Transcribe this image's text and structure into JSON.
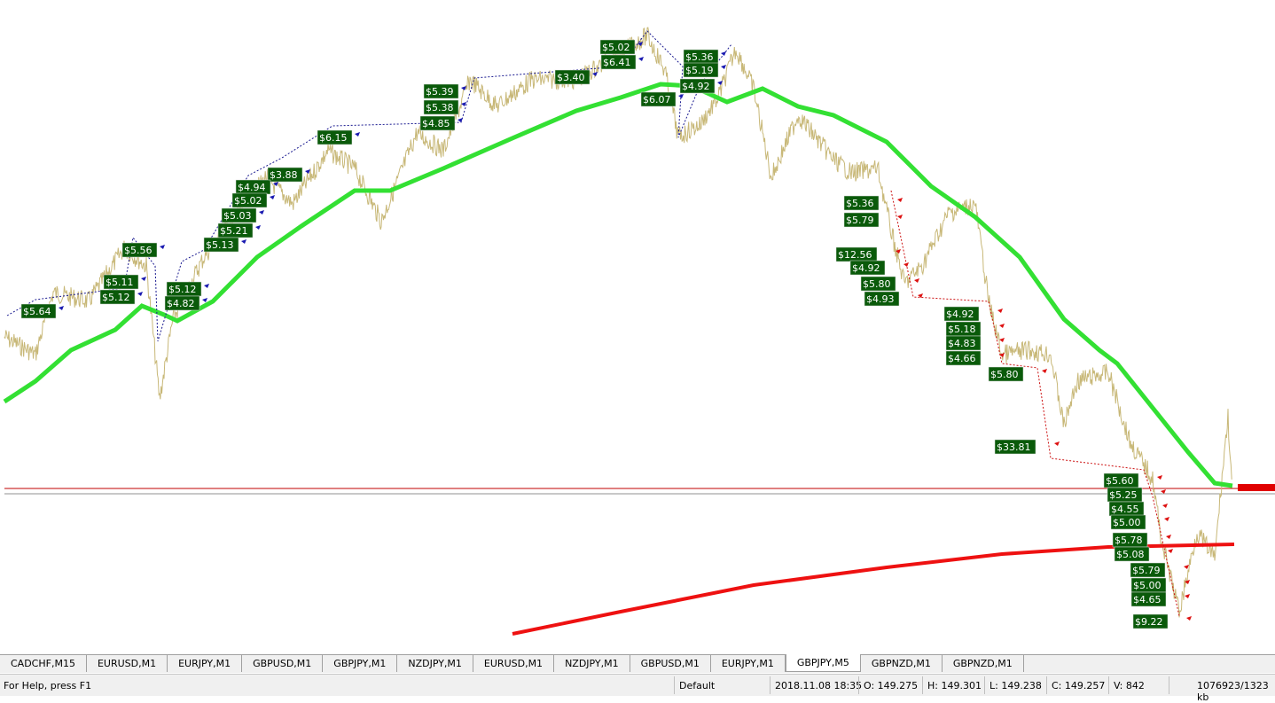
{
  "trade_labels": {
    "buy": [
      "$5.02",
      "$6.41",
      "$5.36",
      "$5.19",
      "$4.92",
      "$6.07",
      "$3.40",
      "$5.39",
      "$5.38",
      "$4.85",
      "$6.15",
      "$3.88",
      "$4.94",
      "$5.02",
      "$5.03",
      "$5.21",
      "$5.13",
      "$5.56",
      "$5.11",
      "$5.12",
      "$5.12",
      "$4.82",
      "$5.64"
    ],
    "sell": [
      "$5.36",
      "$5.79",
      "$12.56",
      "$4.92",
      "$5.80",
      "$4.93",
      "$4.92",
      "$5.18",
      "$4.83",
      "$4.66",
      "$5.80",
      "$33.81",
      "$5.60",
      "$5.25",
      "$4.55",
      "$5.00",
      "$5.78",
      "$5.08",
      "$5.79",
      "$5.00",
      "$4.65",
      "$9.22"
    ]
  },
  "tabs": [
    "CADCHF,M15",
    "EURUSD,M1",
    "EURJPY,M1",
    "GBPUSD,M1",
    "GBPJPY,M1",
    "NZDJPY,M1",
    "EURUSD,M1",
    "NZDJPY,M1",
    "GBPUSD,M1",
    "EURJPY,M1",
    "GBPJPY,M5",
    "GBPNZD,M1",
    "GBPNZD,M1"
  ],
  "status": {
    "help": "For Help, press F1",
    "profile": "Default",
    "time": "2018.11.08 18:35",
    "open": "O: 149.275",
    "high": "H: 149.301",
    "low": "L: 149.238",
    "close": "C: 149.257",
    "volume": "V: 842",
    "traffic": "1076923/1323 kb"
  }
}
